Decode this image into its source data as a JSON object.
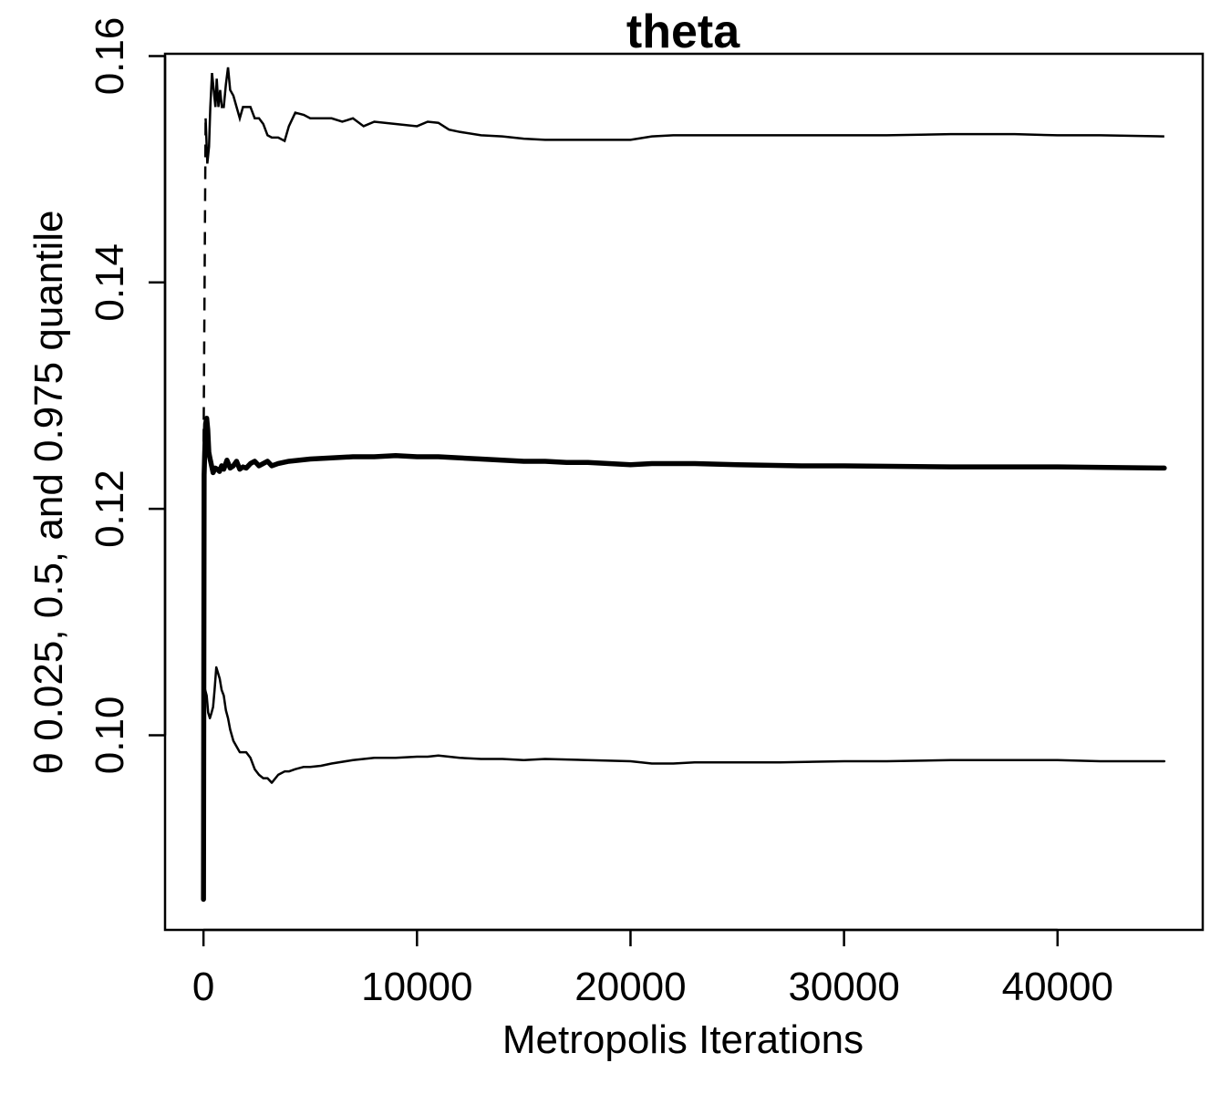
{
  "chart_data": {
    "type": "line",
    "title": "theta",
    "xlabel": "Metropolis Iterations",
    "ylabel": "θ 0.025, 0.5, and 0.975 quantile",
    "xlim": [
      -1800,
      46800
    ],
    "ylim": [
      0.0828,
      0.1602
    ],
    "xticks": [
      0,
      10000,
      20000,
      30000,
      40000
    ],
    "xtick_labels": [
      "0",
      "10000",
      "20000",
      "30000",
      "40000"
    ],
    "yticks": [
      0.1,
      0.12,
      0.14,
      0.16
    ],
    "ytick_labels": [
      "0.10",
      "0.12",
      "0.14",
      "0.16"
    ],
    "grid": false,
    "legend": "none",
    "series": [
      {
        "role": "upper-quantile-0.975",
        "style": "dashed-then-solid",
        "stroke_width": 2.5,
        "x": [
          0,
          100,
          180,
          260,
          320,
          400,
          480,
          560,
          620,
          700,
          780,
          860,
          950,
          1050,
          1150,
          1250,
          1400,
          1550,
          1700,
          1850,
          2000,
          2200,
          2400,
          2600,
          2800,
          3000,
          3200,
          3500,
          3800,
          4000,
          4300,
          4700,
          5000,
          5500,
          6000,
          6500,
          7000,
          7500,
          8000,
          9000,
          10000,
          10500,
          11000,
          11500,
          12000,
          13000,
          14000,
          15000,
          16000,
          17000,
          18000,
          19000,
          20000,
          21000,
          22000,
          23000,
          25000,
          28000,
          30000,
          32000,
          35000,
          38000,
          40000,
          42000,
          45000
        ],
        "y": [
          0.124,
          0.1545,
          0.1505,
          0.152,
          0.1555,
          0.1585,
          0.157,
          0.1555,
          0.158,
          0.1555,
          0.157,
          0.1555,
          0.1555,
          0.1575,
          0.159,
          0.157,
          0.1565,
          0.1555,
          0.1545,
          0.1555,
          0.1555,
          0.1555,
          0.1545,
          0.1545,
          0.154,
          0.153,
          0.1528,
          0.1528,
          0.1525,
          0.1538,
          0.155,
          0.1548,
          0.1545,
          0.1545,
          0.1545,
          0.1542,
          0.1545,
          0.1538,
          0.1542,
          0.154,
          0.1538,
          0.1542,
          0.1541,
          0.1535,
          0.1533,
          0.153,
          0.1529,
          0.1527,
          0.1526,
          0.1526,
          0.1526,
          0.1526,
          0.1526,
          0.1529,
          0.153,
          0.153,
          0.153,
          0.153,
          0.153,
          0.153,
          0.1531,
          0.1531,
          0.153,
          0.153,
          0.1529
        ]
      },
      {
        "role": "median-0.5",
        "style": "solid-thick",
        "stroke_width": 5.5,
        "x": [
          0,
          30,
          60,
          100,
          150,
          200,
          250,
          300,
          380,
          450,
          550,
          650,
          750,
          850,
          950,
          1100,
          1250,
          1400,
          1550,
          1700,
          1850,
          2000,
          2200,
          2400,
          2600,
          2800,
          3000,
          3200,
          3500,
          4000,
          5000,
          6000,
          7000,
          8000,
          9000,
          10000,
          11000,
          12000,
          13000,
          14000,
          15000,
          16000,
          17000,
          18000,
          19000,
          20000,
          21000,
          22000,
          23000,
          25000,
          28000,
          30000,
          35000,
          40000,
          45000
        ],
        "y": [
          0.0855,
          0.123,
          0.125,
          0.1275,
          0.128,
          0.127,
          0.125,
          0.1245,
          0.1238,
          0.1232,
          0.1236,
          0.1235,
          0.1233,
          0.1238,
          0.1235,
          0.1243,
          0.1236,
          0.1238,
          0.1242,
          0.1235,
          0.1237,
          0.1236,
          0.124,
          0.1242,
          0.1238,
          0.124,
          0.1242,
          0.1238,
          0.124,
          0.1242,
          0.1244,
          0.1245,
          0.1246,
          0.1246,
          0.1247,
          0.1246,
          0.1246,
          0.1245,
          0.1244,
          0.1243,
          0.1242,
          0.1242,
          0.1241,
          0.1241,
          0.124,
          0.1239,
          0.124,
          0.124,
          0.124,
          0.1239,
          0.1238,
          0.1238,
          0.1237,
          0.1237,
          0.1236
        ]
      },
      {
        "role": "lower-quantile-0.025",
        "style": "solid",
        "stroke_width": 2.5,
        "x": [
          0,
          80,
          150,
          220,
          300,
          380,
          450,
          520,
          600,
          680,
          760,
          850,
          950,
          1050,
          1150,
          1250,
          1400,
          1550,
          1700,
          1850,
          2000,
          2200,
          2400,
          2600,
          2800,
          3000,
          3200,
          3500,
          3800,
          4000,
          4300,
          4700,
          5000,
          5500,
          6000,
          7000,
          8000,
          9000,
          10000,
          10500,
          11000,
          11500,
          12000,
          13000,
          14000,
          15000,
          16000,
          18000,
          20000,
          21000,
          22000,
          23000,
          25000,
          27000,
          30000,
          32000,
          35000,
          38000,
          40000,
          42000,
          45000
        ],
        "y": [
          0.1,
          0.104,
          0.1035,
          0.102,
          0.1015,
          0.102,
          0.1025,
          0.104,
          0.106,
          0.1055,
          0.105,
          0.104,
          0.1035,
          0.1022,
          0.1015,
          0.1005,
          0.0995,
          0.099,
          0.0985,
          0.0985,
          0.0985,
          0.098,
          0.097,
          0.0965,
          0.0962,
          0.0962,
          0.0958,
          0.0965,
          0.0968,
          0.0968,
          0.097,
          0.0972,
          0.0972,
          0.0973,
          0.0975,
          0.0978,
          0.098,
          0.098,
          0.0981,
          0.0981,
          0.0982,
          0.0981,
          0.098,
          0.0979,
          0.0979,
          0.0978,
          0.0979,
          0.0978,
          0.0977,
          0.0975,
          0.0975,
          0.0976,
          0.0976,
          0.0976,
          0.0977,
          0.0977,
          0.0978,
          0.0978,
          0.0978,
          0.0977,
          0.0977
        ]
      }
    ]
  }
}
